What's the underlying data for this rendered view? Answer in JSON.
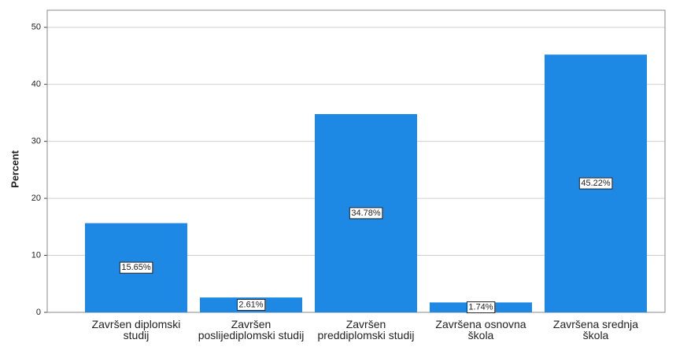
{
  "chart_data": {
    "type": "bar",
    "y_label": "Percent",
    "categories": [
      "Završen diplomski studij",
      "Završen poslijediplomski studij",
      "Završen preddiplomski studij",
      "Završena osnovna škola",
      "Završena srednja škola"
    ],
    "values": [
      15.65,
      2.61,
      34.78,
      1.74,
      45.22
    ],
    "value_labels": [
      "15.65%",
      "2.61%",
      "34.78%",
      "1.74%",
      "45.22%"
    ],
    "color": "#1e88e5",
    "ylim": [
      0,
      53
    ],
    "yticks": [
      0,
      10,
      20,
      30,
      40,
      50
    ],
    "grid": true
  }
}
